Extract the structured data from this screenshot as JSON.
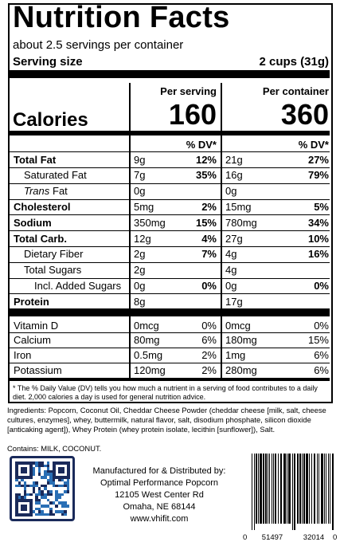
{
  "header": {
    "title": "Nutrition Facts",
    "servings": "about 2.5 servings per container",
    "serving_size_label": "Serving size",
    "serving_size": "2 cups (31g)"
  },
  "columns": [
    "Per serving",
    "Per container"
  ],
  "calories": {
    "label": "Calories",
    "values": [
      "160",
      "360"
    ]
  },
  "dv_header": "% DV*",
  "nutrients": [
    {
      "name": "Total Fat",
      "bold": true,
      "indent": 0,
      "serving": [
        "9g",
        "12%"
      ],
      "container": [
        "21g",
        "27%"
      ]
    },
    {
      "name": "Saturated Fat",
      "bold": false,
      "indent": 1,
      "serving": [
        "7g",
        "35%"
      ],
      "container": [
        "16g",
        "79%"
      ]
    },
    {
      "name_italic": "Trans",
      "name": "Fat",
      "bold": false,
      "indent": 1,
      "serving": [
        "0g"
      ],
      "container": [
        "0g"
      ]
    },
    {
      "name": "Cholesterol",
      "bold": true,
      "indent": 0,
      "serving": [
        "5mg",
        "2%"
      ],
      "container": [
        "15mg",
        "5%"
      ]
    },
    {
      "name": "Sodium",
      "bold": true,
      "indent": 0,
      "serving": [
        "350mg",
        "15%"
      ],
      "container": [
        "780mg",
        "34%"
      ]
    },
    {
      "name": "Total Carb.",
      "bold": true,
      "indent": 0,
      "serving": [
        "12g",
        "4%"
      ],
      "container": [
        "27g",
        "10%"
      ]
    },
    {
      "name": "Dietary Fiber",
      "bold": false,
      "indent": 1,
      "serving": [
        "2g",
        "7%"
      ],
      "container": [
        "4g",
        "16%"
      ]
    },
    {
      "name": "Total Sugars",
      "bold": false,
      "indent": 1,
      "serving": [
        "2g"
      ],
      "container": [
        "4g"
      ]
    },
    {
      "name": "Incl. Added Sugars",
      "bold": false,
      "indent": 2,
      "serving": [
        "0g",
        "0%"
      ],
      "container": [
        "0g",
        "0%"
      ]
    },
    {
      "name": "Protein",
      "bold": true,
      "indent": 0,
      "serving": [
        "8g"
      ],
      "container": [
        "17g"
      ]
    }
  ],
  "vitamins": [
    {
      "name": "Vitamin D",
      "serving": [
        "0mcg",
        "0%"
      ],
      "container": [
        "0mcg",
        "0%"
      ]
    },
    {
      "name": "Calcium",
      "serving": [
        "80mg",
        "6%"
      ],
      "container": [
        "180mg",
        "15%"
      ]
    },
    {
      "name": "Iron",
      "serving": [
        "0.5mg",
        "2%"
      ],
      "container": [
        "1mg",
        "6%"
      ]
    },
    {
      "name": "Potassium",
      "serving": [
        "120mg",
        "2%"
      ],
      "container": [
        "280mg",
        "6%"
      ]
    }
  ],
  "footnote": "* The % Daily Value (DV) tells you how much a nutrient in a serving of food contributes to a daily diet. 2,000 calories a day is used for general nutrition advice.",
  "ingredients": "Ingredients: Popcorn, Coconut Oil, Cheddar Cheese Powder (cheddar cheese [milk, salt, cheese cultures, enzymes], whey, buttermilk, natural flavor, salt, disodium phosphate, silicon dioxide [anticaking agent]), Whey Protein (whey protein isolate, lecithin [sunflower]), Salt.",
  "contains": "Contains: MILK, COCONUT.",
  "manufacturer": [
    "Manufactured for & Distributed by:",
    "Optimal Performance Popcorn",
    "12105 West Center Rd",
    "Omaha, NE 68144",
    "www.vhifit.com"
  ],
  "barcode": [
    "0",
    "51497",
    "32014",
    "0"
  ]
}
